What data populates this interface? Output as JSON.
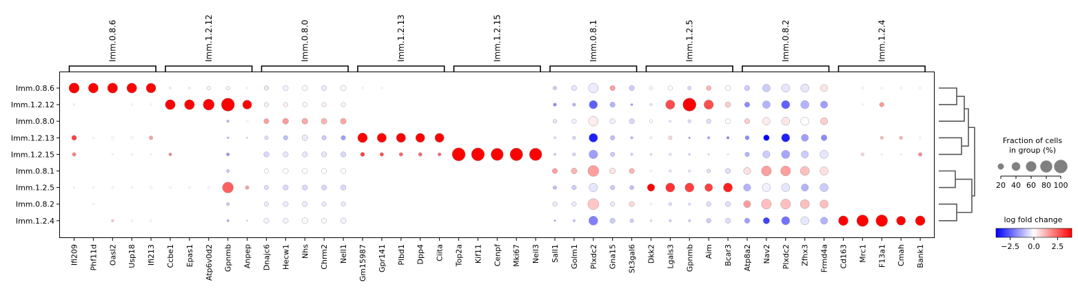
{
  "chart_data": {
    "type": "dotplot",
    "groups": [
      "Imm.0.8.6",
      "Imm.1.2.12",
      "Imm.0.8.0",
      "Imm.1.2.13",
      "Imm.1.2.15",
      "Imm.0.8.1",
      "Imm.1.2.5",
      "Imm.0.8.2",
      "Imm.1.2.4"
    ],
    "gene_groups": [
      {
        "label": "Imm.0.8.6",
        "genes": [
          "Ifi209",
          "Phf11d",
          "Oasl2",
          "Usp18",
          "Ifi213"
        ]
      },
      {
        "label": "Imm.1.2.12",
        "genes": [
          "Ccbe1",
          "Epas1",
          "Atp6v0d2",
          "Gpnmb",
          "Anpep"
        ]
      },
      {
        "label": "Imm.0.8.0",
        "genes": [
          "Dnajc6",
          "Hecw1",
          "Nhs",
          "Chrm2",
          "Nell1"
        ]
      },
      {
        "label": "Imm.1.2.13",
        "genes": [
          "Gm15987",
          "Gpr141",
          "Plbd1",
          "Dpp4",
          "Ciita"
        ]
      },
      {
        "label": "Imm.1.2.15",
        "genes": [
          "Top2a",
          "Kif11",
          "Cenpf",
          "Mki67",
          "Neil3"
        ]
      },
      {
        "label": "Imm.0.8.1",
        "genes": [
          "Sall1",
          "Golm1",
          "Plxdc2",
          "Gna15",
          "St3gal6"
        ]
      },
      {
        "label": "Imm.1.2.5",
        "genes": [
          "Dkk2",
          "Lgals3",
          "Gpnmb",
          "Aim",
          "Bcar3"
        ]
      },
      {
        "label": "Imm.0.8.2",
        "genes": [
          "Atp8a2",
          "Nav2",
          "Plxdc2",
          "Zfhx3",
          "Frmd4a"
        ]
      },
      {
        "label": "Imm.1.2.4",
        "genes": [
          "Cd163",
          "Mrc1",
          "F13a1",
          "Cmah",
          "Bank1"
        ]
      }
    ],
    "fraction": [
      [
        62,
        58,
        60,
        58,
        55,
        3,
        3,
        8,
        8,
        3,
        12,
        16,
        18,
        16,
        18,
        2,
        2,
        0,
        0,
        0,
        0,
        0,
        0,
        0,
        0,
        8,
        16,
        55,
        16,
        16,
        6,
        12,
        8,
        14,
        16,
        16,
        34,
        40,
        40,
        30,
        0,
        3,
        3,
        3,
        3
      ],
      [
        2,
        0,
        0,
        2,
        2,
        58,
        58,
        72,
        100,
        48,
        12,
        12,
        12,
        12,
        12,
        0,
        0,
        0,
        0,
        0,
        0,
        0,
        0,
        0,
        0,
        6,
        6,
        40,
        16,
        3,
        4,
        50,
        100,
        52,
        18,
        16,
        34,
        40,
        40,
        30,
        0,
        2,
        12,
        0,
        0
      ],
      [
        0,
        0,
        0,
        0,
        0,
        0,
        0,
        0,
        4,
        3,
        15,
        20,
        20,
        20,
        20,
        0,
        0,
        0,
        0,
        0,
        0,
        0,
        0,
        0,
        0,
        8,
        12,
        55,
        16,
        16,
        6,
        3,
        6,
        12,
        16,
        16,
        34,
        40,
        40,
        30,
        0,
        0,
        0,
        0,
        0
      ],
      [
        14,
        2,
        4,
        4,
        8,
        0,
        0,
        0,
        3,
        2,
        8,
        12,
        20,
        12,
        12,
        55,
        50,
        50,
        48,
        48,
        0,
        0,
        0,
        0,
        0,
        4,
        6,
        44,
        12,
        4,
        3,
        8,
        2,
        4,
        4,
        10,
        20,
        40,
        30,
        20,
        0,
        0,
        5,
        6,
        3
      ],
      [
        8,
        0,
        2,
        2,
        2,
        5,
        0,
        0,
        6,
        0,
        16,
        16,
        16,
        16,
        16,
        10,
        8,
        8,
        8,
        6,
        100,
        98,
        88,
        94,
        90,
        4,
        6,
        44,
        12,
        4,
        3,
        4,
        2,
        2,
        2,
        12,
        30,
        40,
        30,
        40,
        0,
        5,
        2,
        2,
        8
      ],
      [
        0,
        0,
        0,
        0,
        0,
        0,
        0,
        0,
        6,
        0,
        12,
        16,
        16,
        16,
        16,
        0,
        0,
        0,
        0,
        0,
        0,
        0,
        0,
        0,
        0,
        16,
        20,
        70,
        20,
        16,
        3,
        4,
        4,
        8,
        16,
        30,
        58,
        58,
        48,
        40,
        0,
        0,
        0,
        0,
        0
      ],
      [
        2,
        2,
        2,
        2,
        4,
        3,
        3,
        3,
        70,
        8,
        12,
        16,
        16,
        16,
        16,
        0,
        0,
        0,
        0,
        0,
        0,
        0,
        0,
        0,
        0,
        8,
        12,
        44,
        12,
        10,
        32,
        48,
        48,
        36,
        48,
        30,
        40,
        40,
        30,
        40,
        0,
        0,
        0,
        0,
        0
      ],
      [
        0,
        2,
        0,
        0,
        0,
        0,
        0,
        0,
        6,
        0,
        12,
        16,
        16,
        12,
        12,
        0,
        0,
        0,
        0,
        0,
        0,
        0,
        0,
        0,
        0,
        12,
        12,
        70,
        12,
        16,
        3,
        6,
        4,
        12,
        16,
        30,
        58,
        58,
        48,
        40,
        0,
        0,
        0,
        0,
        0
      ],
      [
        0,
        0,
        4,
        2,
        2,
        0,
        0,
        0,
        3,
        2,
        16,
        16,
        20,
        16,
        18,
        0,
        0,
        0,
        0,
        0,
        0,
        0,
        0,
        0,
        0,
        2,
        4,
        48,
        16,
        8,
        3,
        4,
        4,
        12,
        16,
        16,
        24,
        40,
        40,
        30,
        55,
        78,
        80,
        48,
        55
      ]
    ],
    "logfc": [
      [
        4,
        4,
        4,
        4,
        4,
        0.3,
        0.3,
        0.2,
        0.2,
        0,
        -0.4,
        -0.2,
        -0.1,
        -0.3,
        -0.1,
        0,
        0,
        0,
        0,
        0,
        0,
        0,
        0,
        0,
        0,
        -0.8,
        -0.4,
        -0.3,
        1.5,
        -0.8,
        0,
        0,
        -0.6,
        1.2,
        0,
        -0.8,
        -0.8,
        -0.4,
        -0.4,
        0.4,
        0,
        0,
        0,
        0,
        0
      ],
      [
        0,
        0,
        0,
        0,
        0,
        4,
        4,
        4,
        4,
        4,
        0.3,
        0.2,
        0.1,
        0.2,
        0.2,
        0,
        0,
        0,
        0,
        0,
        0,
        0,
        0,
        0,
        0,
        -1.8,
        -1.2,
        -2.5,
        -1.2,
        -1.5,
        -0.5,
        2.8,
        4,
        2.8,
        0.8,
        -1.8,
        -1.2,
        -2.5,
        -1.2,
        -1.5,
        0,
        0,
        1.6,
        0,
        0
      ],
      [
        0,
        0,
        0,
        0,
        0,
        0,
        0,
        0,
        -1.2,
        0,
        1.5,
        1.6,
        1.4,
        1.2,
        1.4,
        0,
        0,
        0,
        0,
        0,
        0,
        0,
        0,
        0,
        0,
        -0.4,
        -0.2,
        0.3,
        -0.2,
        -0.6,
        0,
        -0.5,
        -0.5,
        -0.5,
        0,
        0.8,
        0.3,
        0.4,
        0,
        0.8,
        0,
        0,
        0,
        0,
        0
      ],
      [
        3,
        0,
        0,
        0,
        1.5,
        0,
        0,
        0,
        -1,
        -0.5,
        -0.5,
        -1,
        -0.3,
        -0.8,
        -1.5,
        4,
        4,
        4,
        4,
        4,
        0,
        0,
        0,
        0,
        0,
        -0.6,
        -0.6,
        -3.5,
        -1,
        -1.2,
        -0.2,
        0.6,
        -1.8,
        -1.5,
        -2,
        -1.8,
        -4,
        -3.5,
        -1.5,
        -1.8,
        0,
        0,
        1.2,
        1.2,
        0
      ],
      [
        2,
        0,
        0,
        0,
        0,
        2,
        0,
        0,
        -1.6,
        0,
        -0.6,
        -0.4,
        -0.4,
        -0.4,
        -0.6,
        3,
        2.8,
        2.4,
        2.4,
        2.4,
        4,
        4,
        4,
        4,
        4,
        -0.8,
        -0.6,
        -1.5,
        -0.8,
        -0.8,
        -0.5,
        -0.5,
        -1,
        -0.5,
        -0.2,
        -1.2,
        -0.8,
        -1.4,
        -0.8,
        -0.4,
        0,
        0.6,
        0,
        0,
        1.8
      ],
      [
        0,
        0,
        0,
        0,
        0,
        0,
        0,
        0,
        -0.8,
        0,
        0,
        0,
        0,
        0,
        0,
        0,
        0,
        0,
        0,
        0,
        0,
        0,
        0,
        0,
        0,
        1.5,
        1.2,
        1.5,
        0.4,
        1.2,
        0,
        -0.5,
        -0.5,
        -0.5,
        -0.5,
        0.5,
        1.5,
        1.5,
        1,
        0.5,
        0,
        0,
        0,
        0,
        0
      ],
      [
        0,
        0,
        0,
        0,
        0,
        0,
        0,
        0,
        2.5,
        1.5,
        -0.5,
        -0.6,
        -0.6,
        -0.6,
        -0.6,
        0,
        0,
        0,
        0,
        0,
        0,
        0,
        0,
        0,
        0,
        -1,
        -0.8,
        -0.4,
        -0.8,
        -1,
        4,
        3.2,
        3,
        3,
        3.5,
        -1.2,
        -0.2,
        -0.4,
        -1.2,
        -0.8,
        0,
        0,
        0,
        0,
        0
      ],
      [
        0,
        0,
        0,
        0,
        0,
        0,
        0,
        0,
        -0.8,
        0,
        -0.3,
        -0.3,
        -0.3,
        -0.3,
        -0.3,
        0,
        0,
        0,
        0,
        0,
        0,
        0,
        0,
        0,
        0,
        -0.3,
        -0.3,
        0.9,
        -0.3,
        0.6,
        0,
        -0.5,
        -0.5,
        -0.5,
        -0.5,
        1.5,
        1,
        1,
        1,
        1,
        0,
        0,
        0,
        0,
        0
      ],
      [
        0,
        0,
        1,
        0,
        0,
        0,
        0,
        0,
        -1.5,
        -0.5,
        -0.2,
        -0.2,
        -0.1,
        -0.1,
        -0.2,
        0,
        0,
        0,
        0,
        0,
        0,
        0,
        0,
        0,
        0,
        -1.5,
        -1,
        -2,
        -0.8,
        -0.8,
        -0.5,
        -0.8,
        -0.8,
        -0.8,
        -0.5,
        -1.5,
        -3,
        -2.2,
        -0.4,
        -1.2,
        4,
        4,
        4,
        4,
        4
      ]
    ],
    "size_legend": {
      "title_line1": "Fraction of cells",
      "title_line2": "in group (%)",
      "ticks": [
        "20",
        "40",
        "60",
        "80",
        "100"
      ]
    },
    "color_legend": {
      "title": "log fold change",
      "ticks": [
        "−2.5",
        "0.0",
        "2.5"
      ],
      "range": [
        -4,
        4
      ],
      "colors": [
        "#0000ff",
        "#ffffff",
        "#ff0000"
      ]
    }
  }
}
